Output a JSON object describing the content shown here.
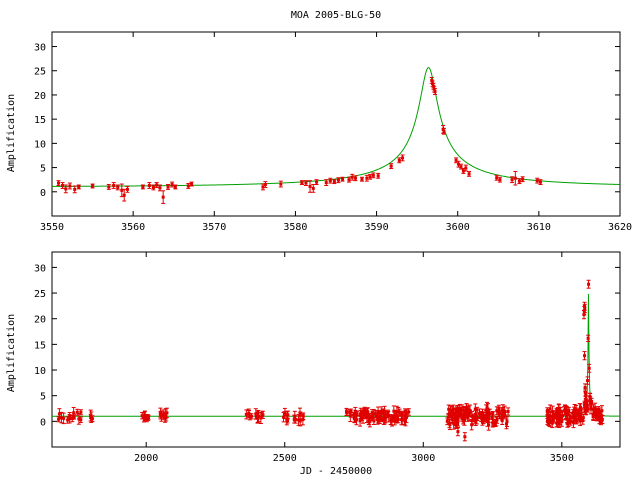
{
  "colors": {
    "model": "#00a000",
    "points": "#e00000",
    "frame": "#000000",
    "background": "#ffffff"
  },
  "chart_data": [
    {
      "type": "scatter",
      "title": "MOA 2005-BLG-50",
      "xlabel": "",
      "ylabel": "Amplification",
      "xlim": [
        3550,
        3620
      ],
      "ylim": [
        -5,
        33
      ],
      "x_ticks": [
        "3550",
        "3560",
        "3570",
        "3580",
        "3590",
        "3600",
        "3610",
        "3620"
      ],
      "y_ticks": [
        "0",
        "5",
        "10",
        "15",
        "20",
        "25",
        "30"
      ],
      "grid": false,
      "model": {
        "name": "",
        "t0": 3596.4,
        "u0": 0.039,
        "tE": 28.8,
        "peak": 26.0
      },
      "series": [
        {
          "name": "",
          "points": [
            [
              3550.8,
              1.8,
              0.5
            ],
            [
              3551.3,
              1.3,
              0.6
            ],
            [
              3551.7,
              0.6,
              0.8
            ],
            [
              3552.2,
              1.2,
              0.6
            ],
            [
              3552.8,
              0.5,
              0.7
            ],
            [
              3553.3,
              1.0,
              0.4
            ],
            [
              3555.0,
              1.2,
              0.4
            ],
            [
              3557.0,
              1.0,
              0.5
            ],
            [
              3557.6,
              1.3,
              0.6
            ],
            [
              3558.1,
              0.9,
              0.5
            ],
            [
              3558.6,
              0.3,
              1.3
            ],
            [
              3558.9,
              -0.7,
              1.2
            ],
            [
              3559.3,
              0.5,
              0.6
            ],
            [
              3561.2,
              1.0,
              0.4
            ],
            [
              3562.0,
              1.3,
              0.6
            ],
            [
              3562.5,
              0.9,
              0.5
            ],
            [
              3562.9,
              1.4,
              0.5
            ],
            [
              3563.3,
              0.8,
              0.6
            ],
            [
              3563.7,
              -1.1,
              1.3
            ],
            [
              3564.3,
              1.0,
              0.5
            ],
            [
              3564.8,
              1.5,
              0.5
            ],
            [
              3565.2,
              1.0,
              0.4
            ],
            [
              3566.8,
              1.2,
              0.5
            ],
            [
              3567.2,
              1.6,
              0.4
            ],
            [
              3576.0,
              1.0,
              0.6
            ],
            [
              3576.3,
              1.5,
              0.6
            ],
            [
              3578.2,
              1.6,
              0.6
            ],
            [
              3580.8,
              1.9,
              0.4
            ],
            [
              3581.3,
              1.8,
              0.5
            ],
            [
              3581.8,
              1.1,
              1.2
            ],
            [
              3582.2,
              0.7,
              0.8
            ],
            [
              3582.6,
              2.0,
              0.5
            ],
            [
              3583.8,
              1.9,
              0.6
            ],
            [
              3584.3,
              2.3,
              0.5
            ],
            [
              3584.8,
              2.1,
              0.4
            ],
            [
              3585.3,
              2.4,
              0.5
            ],
            [
              3585.8,
              2.6,
              0.4
            ],
            [
              3586.6,
              2.5,
              0.5
            ],
            [
              3587.0,
              3.0,
              0.6
            ],
            [
              3587.4,
              2.8,
              0.5
            ],
            [
              3588.2,
              2.6,
              0.4
            ],
            [
              3588.8,
              2.8,
              0.6
            ],
            [
              3589.2,
              3.1,
              0.5
            ],
            [
              3589.6,
              3.4,
              0.5
            ],
            [
              3590.2,
              3.3,
              0.5
            ],
            [
              3591.8,
              5.3,
              0.5
            ],
            [
              3592.8,
              6.5,
              0.5
            ],
            [
              3593.2,
              7.0,
              0.6
            ],
            [
              3596.8,
              23.0,
              0.6
            ],
            [
              3596.9,
              22.3,
              0.6
            ],
            [
              3597.0,
              21.8,
              0.6
            ],
            [
              3597.1,
              21.2,
              0.6
            ],
            [
              3597.2,
              20.7,
              0.6
            ],
            [
              3598.2,
              12.9,
              0.8
            ],
            [
              3598.3,
              12.5,
              0.6
            ],
            [
              3599.8,
              6.5,
              0.5
            ],
            [
              3600.1,
              5.7,
              0.6
            ],
            [
              3600.4,
              5.2,
              0.5
            ],
            [
              3600.7,
              4.3,
              0.5
            ],
            [
              3601.0,
              4.9,
              0.6
            ],
            [
              3601.4,
              3.7,
              0.5
            ],
            [
              3604.8,
              2.9,
              0.5
            ],
            [
              3605.2,
              2.5,
              0.5
            ],
            [
              3606.7,
              2.5,
              0.6
            ],
            [
              3607.1,
              2.8,
              1.4
            ],
            [
              3607.6,
              2.2,
              0.5
            ],
            [
              3608.0,
              2.6,
              0.5
            ],
            [
              3609.8,
              2.3,
              0.5
            ],
            [
              3610.2,
              2.0,
              0.5
            ]
          ]
        }
      ]
    },
    {
      "type": "scatter",
      "title": "",
      "xlabel": "JD - 2450000",
      "ylabel": "Amplification",
      "xlim": [
        1660,
        3710
      ],
      "ylim": [
        -5,
        33
      ],
      "x_ticks": [
        "2000",
        "2500",
        "3000",
        "3500"
      ],
      "y_ticks": [
        "0",
        "5",
        "10",
        "15",
        "20",
        "25",
        "30"
      ],
      "grid": false,
      "model": {
        "name": "",
        "t0": 3596.4,
        "u0": 0.039,
        "tE": 28.8,
        "peak": 26.0
      },
      "seasons": [
        {
          "start": 1680,
          "end": 1770,
          "mean": 1.0,
          "spread": 0.8,
          "count": 14
        },
        {
          "start": 1795,
          "end": 1808,
          "mean": 0.9,
          "spread": 0.4,
          "count": 4
        },
        {
          "start": 1985,
          "end": 2020,
          "mean": 1.0,
          "spread": 0.4,
          "count": 7
        },
        {
          "start": 2045,
          "end": 2090,
          "mean": 1.2,
          "spread": 0.5,
          "count": 9
        },
        {
          "start": 2355,
          "end": 2425,
          "mean": 1.0,
          "spread": 0.6,
          "count": 14
        },
        {
          "start": 2490,
          "end": 2570,
          "mean": 0.8,
          "spread": 0.8,
          "count": 16
        },
        {
          "start": 2720,
          "end": 2950,
          "mean": 1.0,
          "spread": 1.0,
          "count": 95
        },
        {
          "start": 3085,
          "end": 3310,
          "mean": 0.9,
          "spread": 1.6,
          "count": 110
        },
        {
          "start": 3445,
          "end": 3650,
          "mean": 1.0,
          "spread": 1.5,
          "count": 130
        }
      ],
      "series": [
        {
          "name": "",
          "points": [
            [
              3150,
              -3.0,
              0.8
            ],
            [
              3125,
              -2.0,
              0.8
            ],
            [
              3230,
              2.5,
              1.2
            ],
            [
              3580,
              20.8,
              0.8
            ],
            [
              3581,
              21.6,
              0.8
            ],
            [
              3582,
              22.4,
              0.8
            ],
            [
              3583,
              22.0,
              0.8
            ],
            [
              3582,
              12.8,
              0.8
            ],
            [
              3584,
              6.6,
              0.7
            ],
            [
              3585,
              5.6,
              0.7
            ],
            [
              3586,
              5.0,
              0.6
            ],
            [
              3586,
              4.3,
              0.6
            ],
            [
              3588,
              3.2,
              0.6
            ],
            [
              3590,
              2.6,
              0.6
            ],
            [
              3594,
              2.4,
              0.6
            ]
          ]
        }
      ]
    }
  ]
}
